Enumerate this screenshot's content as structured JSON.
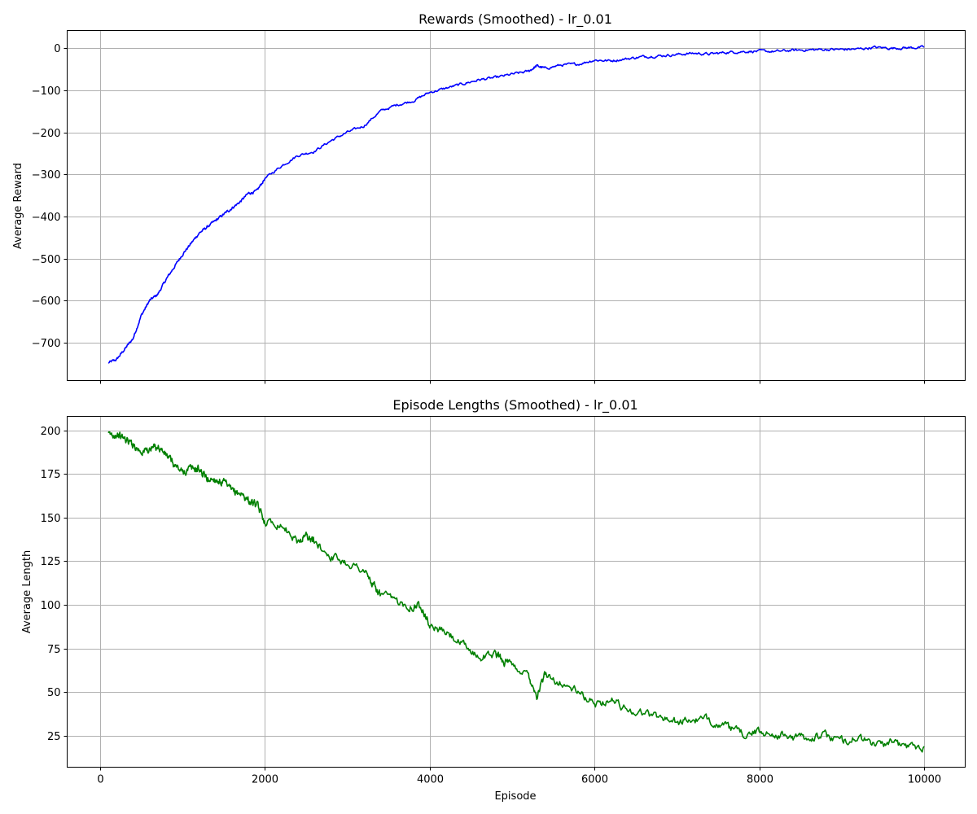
{
  "chart_data": [
    {
      "type": "line",
      "title": "Rewards (Smoothed) - lr_0.01",
      "xlabel": "",
      "ylabel": "Average Reward",
      "xlim": [
        -400,
        10500
      ],
      "ylim": [
        -790,
        42
      ],
      "xticks": [
        0,
        2000,
        4000,
        6000,
        8000,
        10000
      ],
      "xtick_labels_visible": false,
      "yticks": [
        -700,
        -600,
        -500,
        -400,
        -300,
        -200,
        -100,
        0
      ],
      "ytick_labels": [
        "−700",
        "−600",
        "−500",
        "−400",
        "−300",
        "−200",
        "−100",
        "0"
      ],
      "grid": true,
      "color": "#0000ff",
      "series": [
        {
          "x": [
            100,
            200,
            300,
            400,
            500,
            600,
            700,
            800,
            900,
            1000,
            1100,
            1200,
            1300,
            1400,
            1500,
            1600,
            1700,
            1800,
            1900,
            2000,
            2200,
            2400,
            2600,
            2800,
            3000,
            3200,
            3400,
            3600,
            3800,
            4000,
            4200,
            4400,
            4600,
            4800,
            5000,
            5200,
            5300,
            5400,
            5600,
            5800,
            6000,
            6200,
            6400,
            6600,
            6800,
            7000,
            7200,
            7400,
            7600,
            7800,
            8000,
            8200,
            8400,
            8600,
            8800,
            9000,
            9200,
            9400,
            9600,
            9800,
            10000
          ],
          "y": [
            -748,
            -740,
            -715,
            -690,
            -635,
            -600,
            -585,
            -550,
            -520,
            -490,
            -465,
            -440,
            -425,
            -410,
            -395,
            -380,
            -365,
            -345,
            -340,
            -310,
            -280,
            -255,
            -245,
            -220,
            -200,
            -185,
            -150,
            -135,
            -125,
            -105,
            -95,
            -85,
            -75,
            -70,
            -62,
            -55,
            -42,
            -48,
            -40,
            -38,
            -28,
            -30,
            -25,
            -20,
            -18,
            -15,
            -12,
            -14,
            -10,
            -8,
            -7,
            -8,
            -5,
            -4,
            -3,
            -3,
            -2,
            2,
            0,
            1,
            2
          ]
        }
      ]
    },
    {
      "type": "line",
      "title": "Episode Lengths (Smoothed) - lr_0.01",
      "xlabel": "Episode",
      "ylabel": "Average Length",
      "xlim": [
        -400,
        10500
      ],
      "ylim": [
        7,
        208
      ],
      "xticks": [
        0,
        2000,
        4000,
        6000,
        8000,
        10000
      ],
      "xtick_labels": [
        "0",
        "2000",
        "4000",
        "6000",
        "8000",
        "10000"
      ],
      "yticks": [
        25,
        50,
        75,
        100,
        125,
        150,
        175,
        200
      ],
      "ytick_labels": [
        "25",
        "50",
        "75",
        "100",
        "125",
        "150",
        "175",
        "200"
      ],
      "grid": true,
      "color": "#008000",
      "series": [
        {
          "x": [
            100,
            200,
            300,
            400,
            500,
            600,
            700,
            800,
            900,
            1000,
            1100,
            1200,
            1300,
            1400,
            1500,
            1600,
            1700,
            1800,
            1900,
            2000,
            2200,
            2400,
            2500,
            2600,
            2800,
            3000,
            3200,
            3300,
            3400,
            3600,
            3800,
            3900,
            4000,
            4200,
            4400,
            4600,
            4800,
            4900,
            5000,
            5200,
            5300,
            5400,
            5600,
            5800,
            6000,
            6200,
            6400,
            6600,
            6800,
            7000,
            7200,
            7400,
            7600,
            7800,
            8000,
            8200,
            8400,
            8600,
            8800,
            9000,
            9200,
            9400,
            9600,
            9800,
            10000
          ],
          "y": [
            197,
            198,
            195,
            192,
            188,
            189,
            191,
            186,
            180,
            176,
            178,
            178,
            172,
            172,
            170,
            165,
            164,
            160,
            157,
            148,
            146,
            136,
            140,
            136,
            128,
            124,
            120,
            112,
            106,
            102,
            99,
            100,
            88,
            84,
            77,
            70,
            72,
            68,
            65,
            60,
            48,
            60,
            55,
            50,
            43,
            46,
            40,
            38,
            36,
            33,
            34,
            34,
            30,
            26,
            27,
            26,
            24,
            24,
            25,
            22,
            24,
            20,
            21,
            19,
            19
          ]
        }
      ]
    }
  ]
}
